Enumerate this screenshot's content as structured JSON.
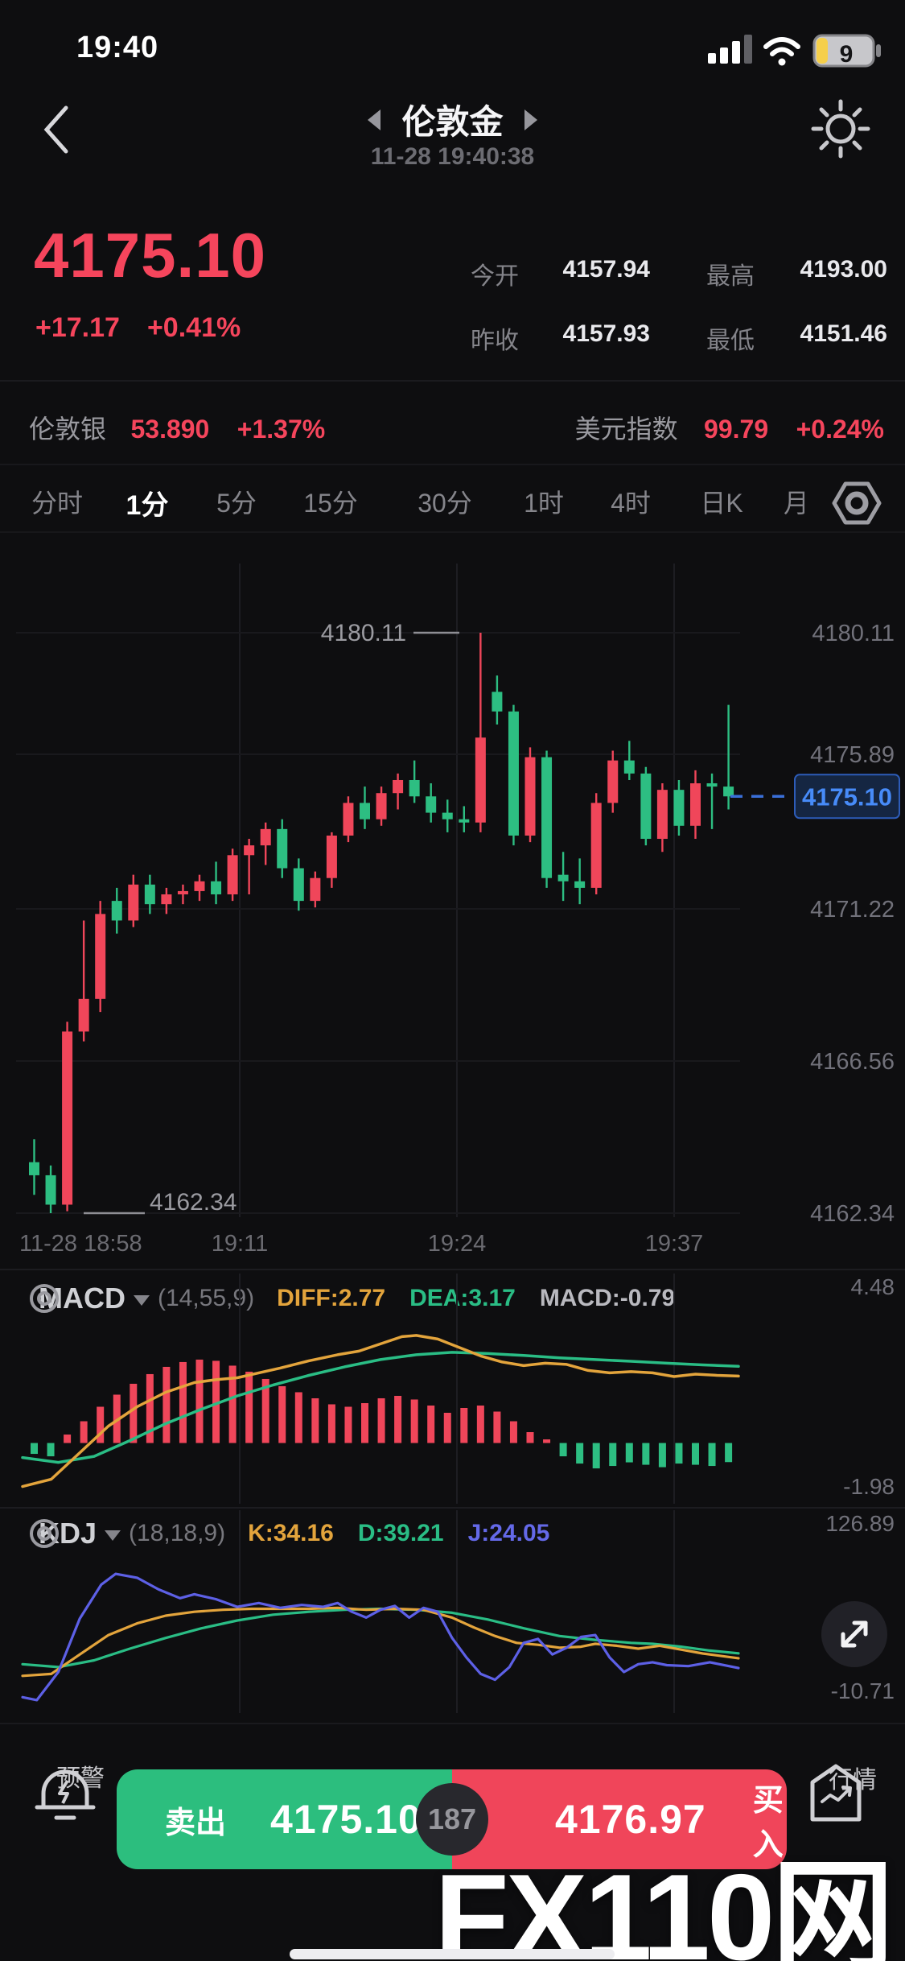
{
  "status_bar": {
    "time": "19:40",
    "battery_level": "9"
  },
  "header": {
    "title": "伦敦金",
    "datetime": "11-28 19:40:38"
  },
  "quote": {
    "price": "4175.10",
    "change": "+17.17",
    "change_pct": "+0.41%",
    "stats": [
      {
        "label": "今开",
        "value": "4157.94"
      },
      {
        "label": "最高",
        "value": "4193.00"
      },
      {
        "label": "昨收",
        "value": "4157.93"
      },
      {
        "label": "最低",
        "value": "4151.46"
      }
    ]
  },
  "related": {
    "left": {
      "name": "伦敦银",
      "price": "53.890",
      "pct": "+1.37%"
    },
    "right": {
      "name": "美元指数",
      "price": "99.79",
      "pct": "+0.24%"
    }
  },
  "tabs": {
    "items": [
      "分时",
      "1分",
      "5分",
      "15分",
      "30分",
      "1时",
      "4时",
      "日K",
      "月"
    ],
    "active": "1分"
  },
  "indicators": {
    "macd": {
      "name": "MACD",
      "params": "(14,55,9)",
      "diff_label": "DIFF:2.77",
      "dea_label": "DEA:3.17",
      "macd_label": "MACD:-0.79",
      "axis_max": "4.48",
      "axis_min": "-1.98"
    },
    "kdj": {
      "name": "KDJ",
      "params": "(18,18,9)",
      "k_label": "K:34.16",
      "d_label": "D:39.21",
      "j_label": "J:24.05",
      "axis_max": "126.89",
      "axis_min": "-10.71"
    }
  },
  "chart_data": [
    {
      "type": "candlestick",
      "title": "伦敦金 1分K",
      "y_axis_labels": [
        "4180.11",
        "4175.89",
        "4175.10",
        "4171.22",
        "4166.56",
        "4162.34"
      ],
      "x_axis_labels": [
        "11-28 18:58",
        "19:11",
        "19:24",
        "19:37"
      ],
      "high_annotation": "4180.11",
      "low_annotation": "4162.34",
      "last_price": "4175.10",
      "last_price_value": 4175.1,
      "ylim": [
        4162.34,
        4180.11
      ],
      "candles": [
        [
          4163.9,
          4164.6,
          4162.9,
          4163.5
        ],
        [
          4163.5,
          4163.8,
          4162.34,
          4162.6
        ],
        [
          4162.6,
          4168.2,
          4162.4,
          4167.9
        ],
        [
          4167.9,
          4171.3,
          4167.6,
          4168.9
        ],
        [
          4168.9,
          4171.9,
          4168.5,
          4171.5
        ],
        [
          4171.9,
          4172.3,
          4170.9,
          4171.3
        ],
        [
          4171.3,
          4172.7,
          4171.1,
          4172.4
        ],
        [
          4172.4,
          4172.7,
          4171.5,
          4171.8
        ],
        [
          4171.8,
          4172.3,
          4171.5,
          4172.1
        ],
        [
          4172.1,
          4172.4,
          4171.8,
          4172.2
        ],
        [
          4172.2,
          4172.7,
          4171.9,
          4172.5
        ],
        [
          4172.5,
          4173.1,
          4171.8,
          4172.1
        ],
        [
          4172.1,
          4173.5,
          4171.9,
          4173.3
        ],
        [
          4173.3,
          4173.8,
          4172.1,
          4173.6
        ],
        [
          4173.6,
          4174.3,
          4173.0,
          4174.1
        ],
        [
          4174.1,
          4174.4,
          4172.6,
          4172.9
        ],
        [
          4172.9,
          4173.2,
          4171.6,
          4171.9
        ],
        [
          4171.9,
          4172.8,
          4171.7,
          4172.6
        ],
        [
          4172.6,
          4174.0,
          4172.3,
          4173.9
        ],
        [
          4173.9,
          4175.1,
          4173.7,
          4174.9
        ],
        [
          4174.9,
          4175.4,
          4174.1,
          4174.4
        ],
        [
          4174.4,
          4175.4,
          4174.2,
          4175.2
        ],
        [
          4175.2,
          4175.8,
          4174.7,
          4175.6
        ],
        [
          4175.6,
          4176.2,
          4174.9,
          4175.1
        ],
        [
          4175.1,
          4175.5,
          4174.3,
          4174.6
        ],
        [
          4174.6,
          4175.0,
          4174.0,
          4174.4
        ],
        [
          4174.4,
          4174.8,
          4174.0,
          4174.3
        ],
        [
          4174.3,
          4180.11,
          4174.0,
          4176.9
        ],
        [
          4178.3,
          4178.8,
          4177.3,
          4177.7
        ],
        [
          4177.7,
          4177.9,
          4173.6,
          4173.9
        ],
        [
          4173.9,
          4176.6,
          4173.7,
          4176.3
        ],
        [
          4176.3,
          4176.5,
          4172.3,
          4172.6
        ],
        [
          4172.7,
          4173.4,
          4171.9,
          4172.5
        ],
        [
          4172.5,
          4173.2,
          4171.8,
          4172.3
        ],
        [
          4172.3,
          4175.2,
          4172.1,
          4174.9
        ],
        [
          4174.9,
          4176.5,
          4174.6,
          4176.2
        ],
        [
          4176.2,
          4176.8,
          4175.6,
          4175.8
        ],
        [
          4175.8,
          4176.0,
          4173.6,
          4173.8
        ],
        [
          4173.8,
          4175.5,
          4173.4,
          4175.3
        ],
        [
          4175.3,
          4175.6,
          4173.9,
          4174.2
        ],
        [
          4174.2,
          4175.9,
          4173.8,
          4175.5
        ],
        [
          4175.5,
          4175.8,
          4174.1,
          4175.4
        ],
        [
          4175.4,
          4177.9,
          4174.7,
          4175.1
        ]
      ]
    },
    {
      "type": "bar",
      "title": "MACD(14,55,9)",
      "ylim": [
        -1.98,
        4.48
      ],
      "histogram": [
        -0.45,
        -0.55,
        0.35,
        0.9,
        1.5,
        2.0,
        2.45,
        2.85,
        3.15,
        3.35,
        3.45,
        3.4,
        3.2,
        2.95,
        2.65,
        2.35,
        2.1,
        1.85,
        1.6,
        1.5,
        1.65,
        1.85,
        1.95,
        1.8,
        1.55,
        1.25,
        1.45,
        1.55,
        1.3,
        0.9,
        0.45,
        0.15,
        -0.55,
        -0.85,
        -1.05,
        -0.95,
        -0.8,
        -0.9,
        -1.0,
        -0.85,
        -0.9,
        -0.95,
        -0.79
      ],
      "diff_line": [
        [
          0,
          -1.8
        ],
        [
          0.04,
          -1.5
        ],
        [
          0.08,
          -0.4
        ],
        [
          0.12,
          0.7
        ],
        [
          0.16,
          1.5
        ],
        [
          0.2,
          2.1
        ],
        [
          0.24,
          2.5
        ],
        [
          0.27,
          2.62
        ],
        [
          0.3,
          2.7
        ],
        [
          0.33,
          2.9
        ],
        [
          0.36,
          3.1
        ],
        [
          0.4,
          3.4
        ],
        [
          0.44,
          3.65
        ],
        [
          0.47,
          3.8
        ],
        [
          0.5,
          4.1
        ],
        [
          0.53,
          4.4
        ],
        [
          0.55,
          4.45
        ],
        [
          0.58,
          4.3
        ],
        [
          0.61,
          3.95
        ],
        [
          0.64,
          3.6
        ],
        [
          0.67,
          3.35
        ],
        [
          0.7,
          3.2
        ],
        [
          0.73,
          3.3
        ],
        [
          0.76,
          3.25
        ],
        [
          0.79,
          3.0
        ],
        [
          0.82,
          2.9
        ],
        [
          0.85,
          2.95
        ],
        [
          0.88,
          2.9
        ],
        [
          0.91,
          2.75
        ],
        [
          0.94,
          2.85
        ],
        [
          0.97,
          2.8
        ],
        [
          1,
          2.77
        ]
      ],
      "dea_line": [
        [
          0,
          -0.6
        ],
        [
          0.05,
          -0.8
        ],
        [
          0.1,
          -0.55
        ],
        [
          0.15,
          0.1
        ],
        [
          0.2,
          0.8
        ],
        [
          0.25,
          1.4
        ],
        [
          0.3,
          1.95
        ],
        [
          0.35,
          2.4
        ],
        [
          0.4,
          2.8
        ],
        [
          0.45,
          3.15
        ],
        [
          0.5,
          3.45
        ],
        [
          0.55,
          3.65
        ],
        [
          0.6,
          3.75
        ],
        [
          0.65,
          3.7
        ],
        [
          0.7,
          3.62
        ],
        [
          0.75,
          3.52
        ],
        [
          0.8,
          3.45
        ],
        [
          0.85,
          3.38
        ],
        [
          0.9,
          3.3
        ],
        [
          0.95,
          3.23
        ],
        [
          1,
          3.17
        ]
      ],
      "diff": 2.77,
      "dea": 3.17,
      "macd": -0.79
    },
    {
      "type": "line",
      "title": "KDJ(18,18,9)",
      "ylim": [
        -10.71,
        126.89
      ],
      "k_line": [
        [
          0,
          16
        ],
        [
          0.04,
          18
        ],
        [
          0.08,
          38
        ],
        [
          0.12,
          58
        ],
        [
          0.16,
          70
        ],
        [
          0.2,
          78
        ],
        [
          0.24,
          82
        ],
        [
          0.28,
          84
        ],
        [
          0.32,
          85
        ],
        [
          0.36,
          85
        ],
        [
          0.4,
          85
        ],
        [
          0.44,
          86
        ],
        [
          0.48,
          84
        ],
        [
          0.52,
          85
        ],
        [
          0.56,
          84
        ],
        [
          0.6,
          76
        ],
        [
          0.63,
          66
        ],
        [
          0.66,
          57
        ],
        [
          0.69,
          50
        ],
        [
          0.72,
          48
        ],
        [
          0.75,
          45
        ],
        [
          0.78,
          46
        ],
        [
          0.8,
          49
        ],
        [
          0.83,
          47
        ],
        [
          0.86,
          44
        ],
        [
          0.89,
          47
        ],
        [
          0.92,
          43
        ],
        [
          0.95,
          39
        ],
        [
          1,
          34.16
        ]
      ],
      "d_line": [
        [
          0,
          28
        ],
        [
          0.05,
          25
        ],
        [
          0.1,
          32
        ],
        [
          0.15,
          44
        ],
        [
          0.2,
          55
        ],
        [
          0.25,
          65
        ],
        [
          0.3,
          73
        ],
        [
          0.35,
          79
        ],
        [
          0.4,
          82
        ],
        [
          0.45,
          84
        ],
        [
          0.5,
          85
        ],
        [
          0.55,
          84
        ],
        [
          0.6,
          81
        ],
        [
          0.65,
          74
        ],
        [
          0.7,
          65
        ],
        [
          0.75,
          57
        ],
        [
          0.8,
          53
        ],
        [
          0.85,
          50
        ],
        [
          0.88,
          49
        ],
        [
          0.92,
          46
        ],
        [
          0.96,
          42
        ],
        [
          1,
          39.21
        ]
      ],
      "j_line": [
        [
          0,
          -6
        ],
        [
          0.02,
          -9
        ],
        [
          0.05,
          20
        ],
        [
          0.08,
          75
        ],
        [
          0.11,
          110
        ],
        [
          0.13,
          121
        ],
        [
          0.16,
          117
        ],
        [
          0.19,
          105
        ],
        [
          0.22,
          96
        ],
        [
          0.24,
          100
        ],
        [
          0.27,
          95
        ],
        [
          0.3,
          87
        ],
        [
          0.33,
          91
        ],
        [
          0.36,
          86
        ],
        [
          0.39,
          89
        ],
        [
          0.42,
          87
        ],
        [
          0.44,
          91
        ],
        [
          0.46,
          82
        ],
        [
          0.48,
          76
        ],
        [
          0.5,
          84
        ],
        [
          0.52,
          88
        ],
        [
          0.54,
          76
        ],
        [
          0.56,
          86
        ],
        [
          0.58,
          82
        ],
        [
          0.6,
          55
        ],
        [
          0.62,
          35
        ],
        [
          0.64,
          18
        ],
        [
          0.66,
          12
        ],
        [
          0.68,
          25
        ],
        [
          0.7,
          50
        ],
        [
          0.72,
          54
        ],
        [
          0.74,
          38
        ],
        [
          0.76,
          45
        ],
        [
          0.78,
          56
        ],
        [
          0.8,
          58
        ],
        [
          0.82,
          35
        ],
        [
          0.84,
          20
        ],
        [
          0.86,
          28
        ],
        [
          0.88,
          30
        ],
        [
          0.9,
          27
        ],
        [
          0.93,
          26
        ],
        [
          0.96,
          30
        ],
        [
          1,
          24.05
        ]
      ],
      "k": 34.16,
      "d": 39.21,
      "j": 24.05
    }
  ],
  "trade_bar": {
    "alert_label": "预警",
    "sell_label": "卖出",
    "sell_price": "4175.10",
    "spread": "187",
    "buy_price": "4176.97",
    "buy_label": "买入",
    "right_label": "行情"
  },
  "watermark": "FX110网",
  "colors": {
    "up_red": "#f0465a",
    "down_green": "#2dbe82",
    "accent_red_text": "#f5455c",
    "diff_orange": "#e3a43c",
    "dea_teal": "#2abd85",
    "j_purple": "#5d60e6",
    "last_price_blue": "#478bf8",
    "badge_bg": "#152642",
    "badge_border": "#2d5cb8",
    "grid": "#1d1d22",
    "axis_text": "#71717a"
  }
}
